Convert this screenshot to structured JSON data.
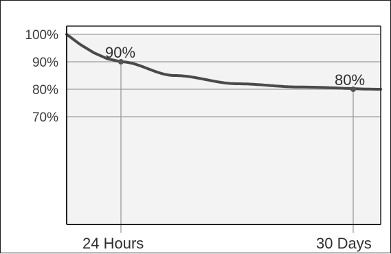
{
  "chart_data": {
    "type": "line",
    "title": "",
    "xlabel": "",
    "ylabel": "",
    "y_tick_labels": [
      "100%",
      "90%",
      "80%",
      "70%"
    ],
    "y_ticks": [
      100,
      90,
      80,
      70
    ],
    "ylim": [
      50,
      100
    ],
    "x_tick_labels": [
      "24 Hours",
      "30 Days"
    ],
    "grid": true,
    "legend": "none",
    "series": [
      {
        "x": [
          0,
          1,
          7,
          14,
          21,
          30
        ],
        "values": [
          100,
          90,
          85,
          82,
          80.8,
          80
        ]
      }
    ],
    "markers": [
      {
        "x": 1,
        "y": 90,
        "label": "90%"
      },
      {
        "x": 30,
        "y": 80,
        "label": "80%"
      }
    ],
    "colors": {
      "line": "#4a4a4a",
      "plot_background": "#f3f3f3",
      "grid": "#9a9a9a",
      "axis": "#222222"
    }
  }
}
